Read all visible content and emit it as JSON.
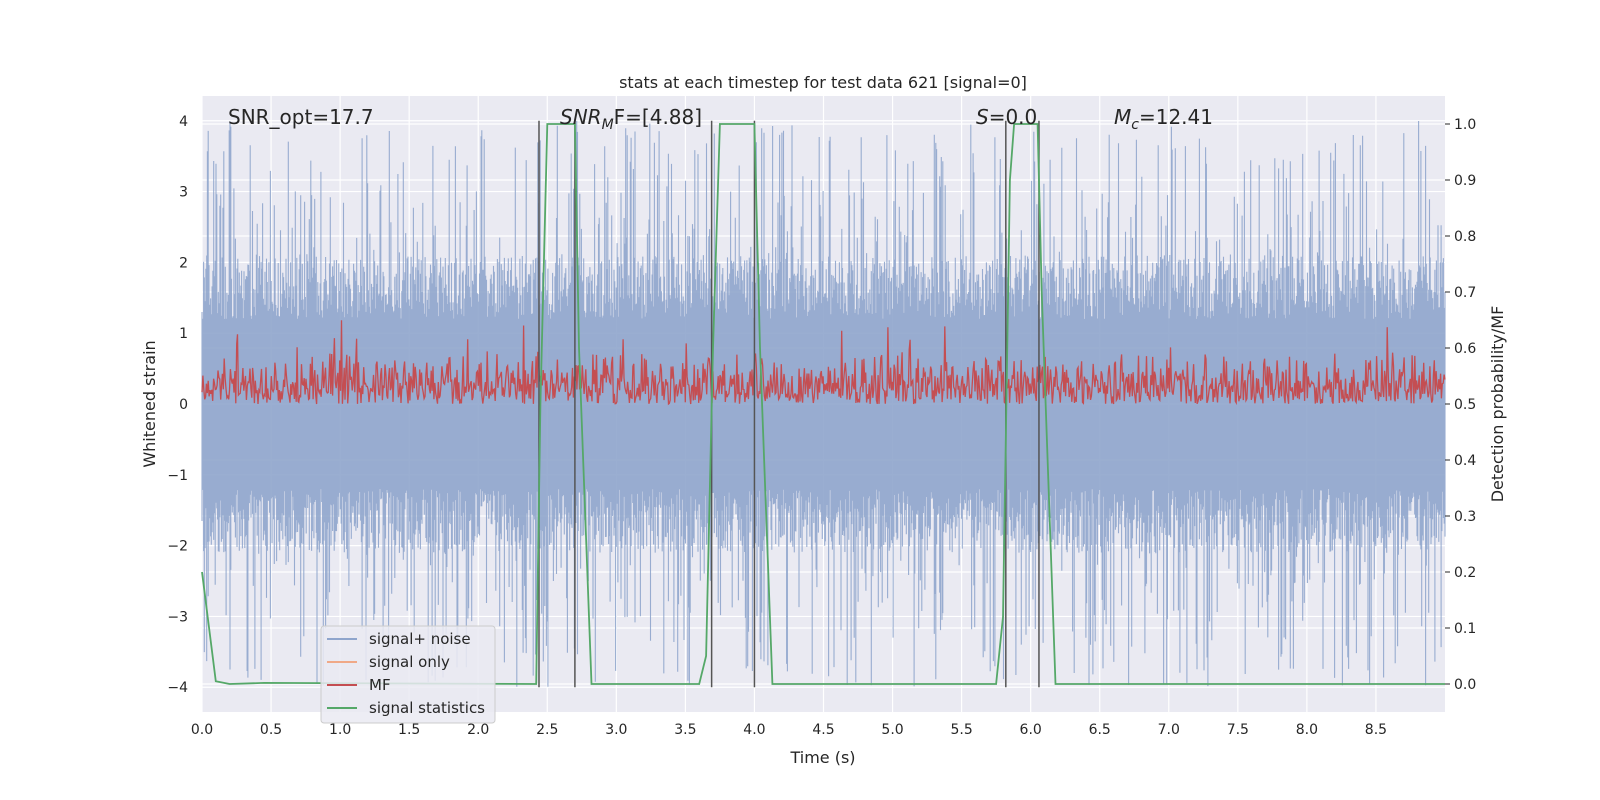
{
  "chart_data": {
    "type": "line",
    "title": "stats at each timestep for test data 621 [signal=0]",
    "xlabel": "Time (s)",
    "ylabel": "Whitened strain",
    "ylabel_right": "Detection probability/MF",
    "xlim": [
      0.0,
      9.0
    ],
    "ylim": [
      -4.35,
      4.35
    ],
    "ylim_right": [
      -0.05,
      1.05
    ],
    "x_ticks": [
      "0.0",
      "0.5",
      "1.0",
      "1.5",
      "2.0",
      "2.5",
      "3.0",
      "3.5",
      "4.0",
      "4.5",
      "5.0",
      "5.5",
      "6.0",
      "6.5",
      "7.0",
      "7.5",
      "8.0",
      "8.5"
    ],
    "y_ticks": [
      "4",
      "3",
      "2",
      "1",
      "0",
      "−1",
      "−2",
      "−3",
      "−4"
    ],
    "y_tick_values": [
      4,
      3,
      2,
      1,
      0,
      -1,
      -2,
      -3,
      -4
    ],
    "y_right_ticks": [
      "1.0",
      "0.9",
      "0.8",
      "0.7",
      "0.6",
      "0.5",
      "0.4",
      "0.3",
      "0.2",
      "0.1",
      "0.0"
    ],
    "y_right_tick_values": [
      1.0,
      0.9,
      0.8,
      0.7,
      0.6,
      0.5,
      0.4,
      0.3,
      0.2,
      0.1,
      0.0
    ],
    "grid": true,
    "legend_position": "lower-left",
    "annotations": {
      "snr_opt": "SNR_opt=17.7",
      "snr_mf_sym": "SNR",
      "snr_mf_sub": "M",
      "snr_mf_rest": "F=[4.88]",
      "s_sym": "S",
      "s_rest": "=0.0",
      "mc_sym": "M",
      "mc_sub": "c",
      "mc_rest": "=12.41"
    },
    "series": [
      {
        "name": "signal+ noise",
        "color": "#8fa5cc",
        "noise_amplitude": 1.6,
        "peak_amplitude": 4.0
      },
      {
        "name": "signal only",
        "color": "#f0a987",
        "values": []
      },
      {
        "name": "MF",
        "color": "#c44e52",
        "baseline": 0.5,
        "range": [
          0.5,
          0.6
        ]
      },
      {
        "name": "signal statistics",
        "color": "#55a868",
        "x": [
          0.0,
          0.1,
          0.2,
          0.45,
          2.42,
          2.45,
          2.5,
          2.7,
          2.73,
          2.82,
          3.6,
          3.65,
          3.7,
          3.75,
          4.0,
          4.04,
          4.13,
          5.75,
          5.8,
          5.85,
          5.88,
          6.05,
          6.08,
          6.18,
          9.0
        ],
        "y": [
          0.2,
          0.005,
          0.0,
          0.002,
          0.0,
          0.5,
          1.0,
          1.0,
          0.6,
          0.0,
          0.0,
          0.05,
          0.6,
          1.0,
          1.0,
          0.6,
          0.0,
          0.0,
          0.12,
          0.9,
          1.0,
          1.0,
          0.7,
          0.0,
          0.0
        ]
      }
    ],
    "vlines": [
      2.44,
      2.7,
      3.69,
      4.0,
      5.82,
      6.06
    ],
    "vline_color": "#555555"
  }
}
